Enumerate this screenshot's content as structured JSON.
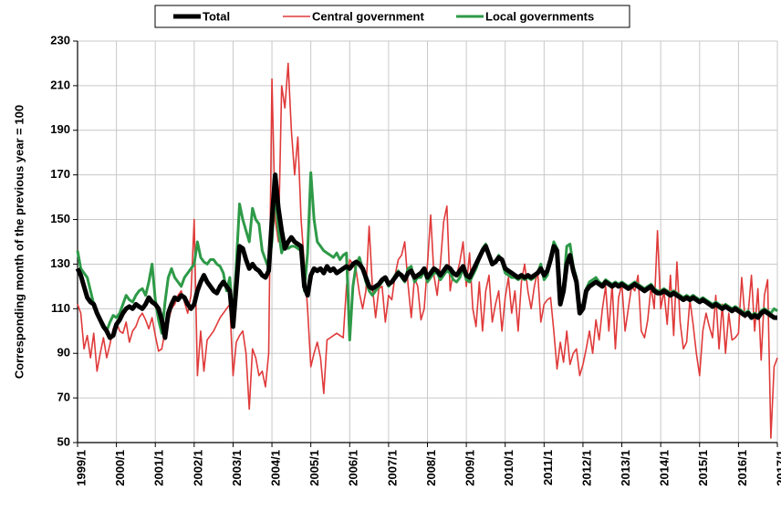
{
  "chart_data": {
    "type": "line",
    "y_label": "Corresponding month of the previous year = 100",
    "legend": "top",
    "grid": true,
    "ylim": [
      50,
      230
    ],
    "yticks": [
      50,
      70,
      90,
      110,
      130,
      150,
      170,
      190,
      210,
      230
    ],
    "categories": [
      "1999/1",
      null,
      null,
      null,
      null,
      null,
      null,
      null,
      null,
      null,
      null,
      null,
      "2000/1",
      null,
      null,
      null,
      null,
      null,
      null,
      null,
      null,
      null,
      null,
      null,
      "2001/1",
      null,
      null,
      null,
      null,
      null,
      null,
      null,
      null,
      null,
      null,
      null,
      "2002/1",
      null,
      null,
      null,
      null,
      null,
      null,
      null,
      null,
      null,
      null,
      null,
      "2003/1",
      null,
      null,
      null,
      null,
      null,
      null,
      null,
      null,
      null,
      null,
      null,
      "2004/1",
      null,
      null,
      null,
      null,
      null,
      null,
      null,
      null,
      null,
      null,
      null,
      "2005/1",
      null,
      null,
      null,
      null,
      null,
      null,
      null,
      null,
      null,
      null,
      null,
      "2006/1",
      null,
      null,
      null,
      null,
      null,
      null,
      null,
      null,
      null,
      null,
      null,
      "2007/1",
      null,
      null,
      null,
      null,
      null,
      null,
      null,
      null,
      null,
      null,
      null,
      "2008/1",
      null,
      null,
      null,
      null,
      null,
      null,
      null,
      null,
      null,
      null,
      null,
      "2009/1",
      null,
      null,
      null,
      null,
      null,
      null,
      null,
      null,
      null,
      null,
      null,
      "2010/1",
      null,
      null,
      null,
      null,
      null,
      null,
      null,
      null,
      null,
      null,
      null,
      "2011/1",
      null,
      null,
      null,
      null,
      null,
      null,
      null,
      null,
      null,
      null,
      null,
      "2012/1",
      null,
      null,
      null,
      null,
      null,
      null,
      null,
      null,
      null,
      null,
      null,
      "2013/1",
      null,
      null,
      null,
      null,
      null,
      null,
      null,
      null,
      null,
      null,
      null,
      "2014/1",
      null,
      null,
      null,
      null,
      null,
      null,
      null,
      null,
      null,
      null,
      null,
      "2015/1",
      null,
      null,
      null,
      null,
      null,
      null,
      null,
      null,
      null,
      null,
      null,
      "2016/1",
      null,
      null,
      null,
      null,
      null,
      null,
      null,
      null,
      null,
      null,
      null,
      "2017/1"
    ],
    "series": [
      {
        "name": "Total",
        "color": "#000000",
        "width": 5,
        "values": [
          128,
          125,
          120,
          115,
          113,
          112,
          108,
          105,
          102,
          100,
          97,
          98,
          103,
          105,
          108,
          110,
          111,
          110,
          112,
          111,
          110,
          112,
          115,
          113,
          112,
          110,
          105,
          97,
          108,
          112,
          115,
          114,
          116,
          115,
          112,
          110,
          112,
          118,
          122,
          125,
          122,
          120,
          118,
          117,
          120,
          122,
          120,
          118,
          102,
          120,
          138,
          137,
          132,
          128,
          130,
          128,
          127,
          125,
          124,
          127,
          150,
          170,
          155,
          145,
          137,
          140,
          142,
          140,
          139,
          138,
          120,
          116,
          125,
          128,
          127,
          128,
          126,
          129,
          127,
          128,
          126,
          127,
          128,
          129,
          128,
          130,
          131,
          130,
          128,
          124,
          120,
          119,
          120,
          121,
          123,
          124,
          121,
          122,
          124,
          126,
          125,
          123,
          126,
          127,
          124,
          125,
          126,
          128,
          124,
          126,
          128,
          127,
          125,
          127,
          129,
          128,
          126,
          125,
          127,
          129,
          125,
          124,
          127,
          130,
          133,
          136,
          138,
          134,
          130,
          131,
          133,
          132,
          128,
          127,
          126,
          125,
          124,
          125,
          124,
          125,
          124,
          125,
          126,
          128,
          125,
          127,
          132,
          138,
          136,
          112,
          118,
          130,
          134,
          127,
          122,
          108,
          110,
          118,
          120,
          121,
          122,
          121,
          120,
          122,
          121,
          120,
          121,
          120,
          121,
          120,
          119,
          120,
          121,
          120,
          119,
          118,
          119,
          120,
          118,
          117,
          117,
          118,
          117,
          116,
          117,
          116,
          115,
          114,
          115,
          114,
          115,
          114,
          113,
          114,
          113,
          112,
          111,
          112,
          111,
          110,
          111,
          110,
          109,
          110,
          109,
          108,
          107,
          108,
          106,
          107,
          106,
          108,
          109,
          108,
          107,
          106,
          106
        ]
      },
      {
        "name": "Central government",
        "color": "#e03a3a",
        "width": 1.6,
        "values": [
          112,
          108,
          92,
          98,
          88,
          99,
          82,
          90,
          97,
          88,
          94,
          101,
          104,
          100,
          99,
          104,
          95,
          100,
          102,
          106,
          108,
          105,
          101,
          106,
          98,
          91,
          92,
          100,
          104,
          110,
          112,
          116,
          118,
          113,
          108,
          116,
          150,
          80,
          100,
          82,
          96,
          98,
          100,
          103,
          106,
          108,
          110,
          112,
          80,
          95,
          98,
          100,
          90,
          65,
          92,
          88,
          80,
          82,
          75,
          90,
          213,
          150,
          140,
          210,
          200,
          220,
          190,
          170,
          187,
          150,
          130,
          110,
          84,
          90,
          95,
          88,
          72,
          96,
          97,
          98,
          99,
          98,
          97,
          120,
          132,
          130,
          127,
          117,
          110,
          118,
          147,
          120,
          106,
          119,
          120,
          104,
          116,
          114,
          125,
          132,
          134,
          140,
          121,
          106,
          124,
          120,
          105,
          110,
          130,
          152,
          125,
          116,
          130,
          149,
          156,
          118,
          127,
          125,
          131,
          140,
          120,
          135,
          110,
          102,
          122,
          100,
          118,
          125,
          104,
          112,
          118,
          100,
          115,
          124,
          108,
          118,
          100,
          122,
          130,
          118,
          110,
          120,
          127,
          104,
          112,
          114,
          115,
          100,
          83,
          95,
          86,
          100,
          85,
          90,
          92,
          80,
          85,
          92,
          100,
          90,
          105,
          96,
          110,
          120,
          100,
          121,
          92,
          115,
          121,
          100,
          110,
          120,
          118,
          125,
          100,
          97,
          105,
          120,
          110,
          145,
          110,
          118,
          103,
          125,
          98,
          131,
          104,
          92,
          95,
          114,
          103,
          90,
          80,
          100,
          108,
          102,
          97,
          116,
          92,
          112,
          90,
          108,
          96,
          97,
          99,
          124,
          106,
          108,
          125,
          100,
          119,
          87,
          116,
          123,
          52,
          84,
          88
        ]
      },
      {
        "name": "Local governments",
        "color": "#2e9a48",
        "width": 3,
        "values": [
          136,
          128,
          126,
          124,
          118,
          112,
          108,
          105,
          103,
          100,
          104,
          107,
          106,
          108,
          112,
          116,
          114,
          113,
          116,
          118,
          119,
          116,
          122,
          130,
          114,
          105,
          99,
          113,
          124,
          128,
          124,
          122,
          120,
          124,
          126,
          128,
          130,
          140,
          133,
          131,
          130,
          132,
          132,
          130,
          129,
          126,
          118,
          124,
          105,
          130,
          157,
          150,
          145,
          140,
          155,
          150,
          148,
          136,
          132,
          128,
          140,
          163,
          145,
          135,
          140,
          137,
          138,
          138,
          137,
          136,
          118,
          135,
          171,
          150,
          140,
          138,
          136,
          135,
          134,
          133,
          135,
          132,
          134,
          135,
          96,
          120,
          130,
          133,
          128,
          122,
          118,
          116,
          118,
          120,
          122,
          124,
          120,
          122,
          125,
          127,
          124,
          122,
          128,
          129,
          122,
          124,
          124,
          127,
          122,
          124,
          126,
          126,
          123,
          125,
          127,
          126,
          123,
          122,
          124,
          128,
          123,
          122,
          125,
          128,
          132,
          137,
          139,
          135,
          130,
          131,
          134,
          131,
          126,
          125,
          124,
          124,
          123,
          124,
          123,
          124,
          123,
          124,
          126,
          130,
          123,
          125,
          133,
          140,
          137,
          115,
          120,
          138,
          139,
          129,
          124,
          111,
          112,
          119,
          122,
          123,
          124,
          122,
          121,
          123,
          122,
          121,
          122,
          121,
          122,
          121,
          120,
          121,
          122,
          121,
          120,
          119,
          120,
          121,
          119,
          118,
          118,
          119,
          118,
          117,
          118,
          117,
          116,
          115,
          116,
          115,
          116,
          115,
          114,
          115,
          114,
          113,
          112,
          113,
          112,
          111,
          112,
          111,
          110,
          111,
          110,
          109,
          108,
          109,
          107,
          108,
          107,
          109,
          110,
          109,
          108,
          110,
          109
        ]
      }
    ]
  }
}
